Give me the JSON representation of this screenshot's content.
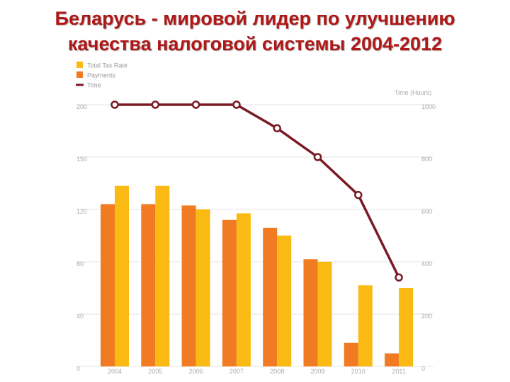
{
  "slide": {
    "title_line1": "Беларусь - мировой лидер по улучшению",
    "title_line2": "качества налоговой системы 2004-2012"
  },
  "colors": {
    "title": "#b01818",
    "total_tax_rate": "#fbb913",
    "payments": "#f07b22",
    "time": "#7a1a25",
    "grid": "#e3e3e3"
  },
  "chart_data": {
    "type": "bar",
    "categories": [
      "2004",
      "2005",
      "2006",
      "2007",
      "2008",
      "2009",
      "2010",
      "2011"
    ],
    "series": [
      {
        "name": "Payments",
        "chart": "bar",
        "axis": "left",
        "values": [
          124,
          124,
          123,
          112,
          106,
          82,
          18,
          10
        ]
      },
      {
        "name": "Total Tax Rate",
        "chart": "bar",
        "axis": "left",
        "values": [
          138,
          138,
          120,
          117,
          100,
          80,
          62,
          60
        ]
      },
      {
        "name": "Time",
        "chart": "line",
        "axis": "right",
        "marker": "open-circle",
        "values": [
          1000,
          1000,
          1000,
          1000,
          910,
          800,
          655,
          340
        ]
      }
    ],
    "left_axis": {
      "ticks": [
        "200",
        "150",
        "120",
        "80",
        "40",
        "0"
      ],
      "ylim": [
        0,
        200
      ]
    },
    "right_axis": {
      "label": "Time (Hours)",
      "ticks": [
        "1000",
        "800",
        "600",
        "400",
        "200",
        "0"
      ],
      "ylim": [
        0,
        1000
      ]
    },
    "legend": [
      "Total Tax Rate",
      "Payments",
      "Time"
    ],
    "legend_position": "top-left",
    "grid": true
  }
}
